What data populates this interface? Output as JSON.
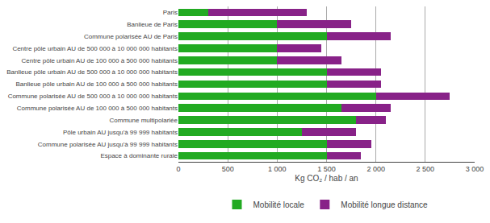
{
  "chart_data": {
    "type": "bar",
    "orientation": "horizontal",
    "stacked": true,
    "categories": [
      "Paris",
      "Banlieue de Paris",
      "Commune polarisée AU de Paris",
      "Centre pôle urbain AU de 500 000 à 10 000 000 habitants",
      "Centre pôle urbain AU de 100 000 à 500 000 habitants",
      "Banlieue pôle urbain AU de 500 000 à 10 000 000 habitants",
      "Banlieue pôle urbain AU de 100 000 à 500 000 habitants",
      "Commune polarisée AU de 500 000 à 10 000 000 habitants",
      "Commune polarisée AU de 100 000 à 500 000 habitants",
      "Commune multipolariée",
      "Pôle urbain AU jusqu'à 99 999 habitants",
      "Commune polarisée AU jusqu'à 99 999 habitants",
      "Espace à dominante rurale"
    ],
    "series": [
      {
        "name": "Mobilité locale",
        "color": "#22aa22",
        "values": [
          300,
          1000,
          1500,
          1000,
          1000,
          1500,
          1500,
          2000,
          1650,
          1800,
          1250,
          1500,
          1500
        ]
      },
      {
        "name": "Mobilité longue distance",
        "color": "#882288",
        "values": [
          1000,
          750,
          650,
          450,
          650,
          550,
          550,
          750,
          500,
          300,
          550,
          450,
          350
        ]
      }
    ],
    "xlabel": "Kg CO₂ / hab / an",
    "xlim": [
      0,
      3000
    ],
    "xticks": [
      0,
      500,
      {
        "value": 1000,
        "label": "1 000"
      },
      {
        "value": 1500,
        "label": "1 500"
      },
      {
        "value": 2000,
        "label": "2 000"
      },
      {
        "value": 2500,
        "label": "2 500"
      },
      {
        "value": 3000,
        "label": "3 000"
      }
    ],
    "grid": true,
    "legend": "bottom"
  }
}
